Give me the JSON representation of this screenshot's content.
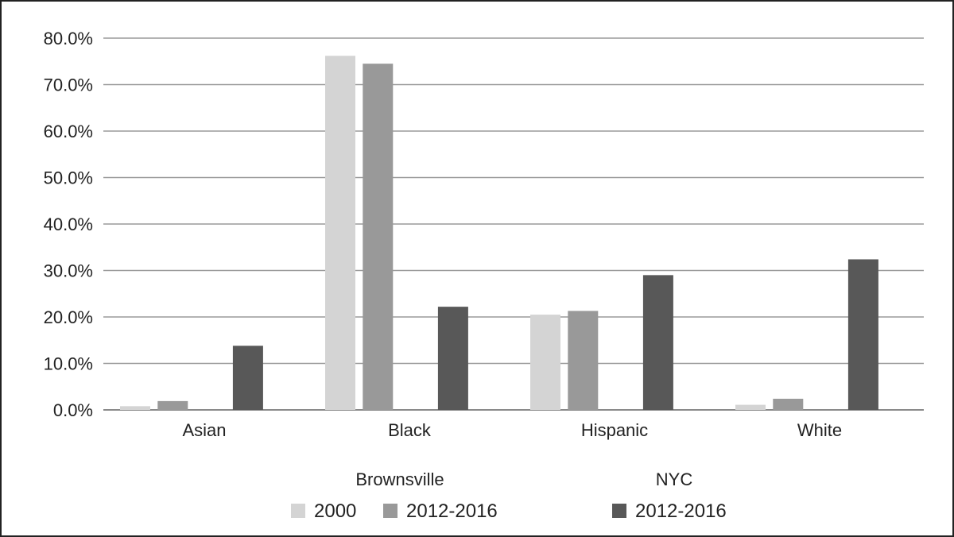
{
  "chart_data": {
    "type": "bar",
    "title": "",
    "xlabel": "",
    "ylabel": "",
    "categories": [
      "Asian",
      "Black",
      "Hispanic",
      "White"
    ],
    "ylim": [
      0,
      80
    ],
    "yticks": [
      "0.0%",
      "10.0%",
      "20.0%",
      "30.0%",
      "40.0%",
      "50.0%",
      "60.0%",
      "70.0%",
      "80.0%"
    ],
    "grid": true,
    "legend_position": "bottom",
    "legend_groups": [
      {
        "label": "Brownsville",
        "series": [
          0,
          1
        ]
      },
      {
        "label": "NYC",
        "series": [
          2
        ]
      }
    ],
    "series": [
      {
        "name": "2000",
        "group": "Brownsville",
        "color": "#d4d4d4",
        "values": [
          0.8,
          76.2,
          20.5,
          1.1
        ]
      },
      {
        "name": "2012-2016",
        "group": "Brownsville",
        "color": "#999999",
        "values": [
          1.9,
          74.5,
          21.3,
          2.4
        ]
      },
      {
        "name": "2012-2016",
        "group": "NYC",
        "color": "#585858",
        "values": [
          13.8,
          22.2,
          29.0,
          32.4
        ]
      }
    ]
  }
}
